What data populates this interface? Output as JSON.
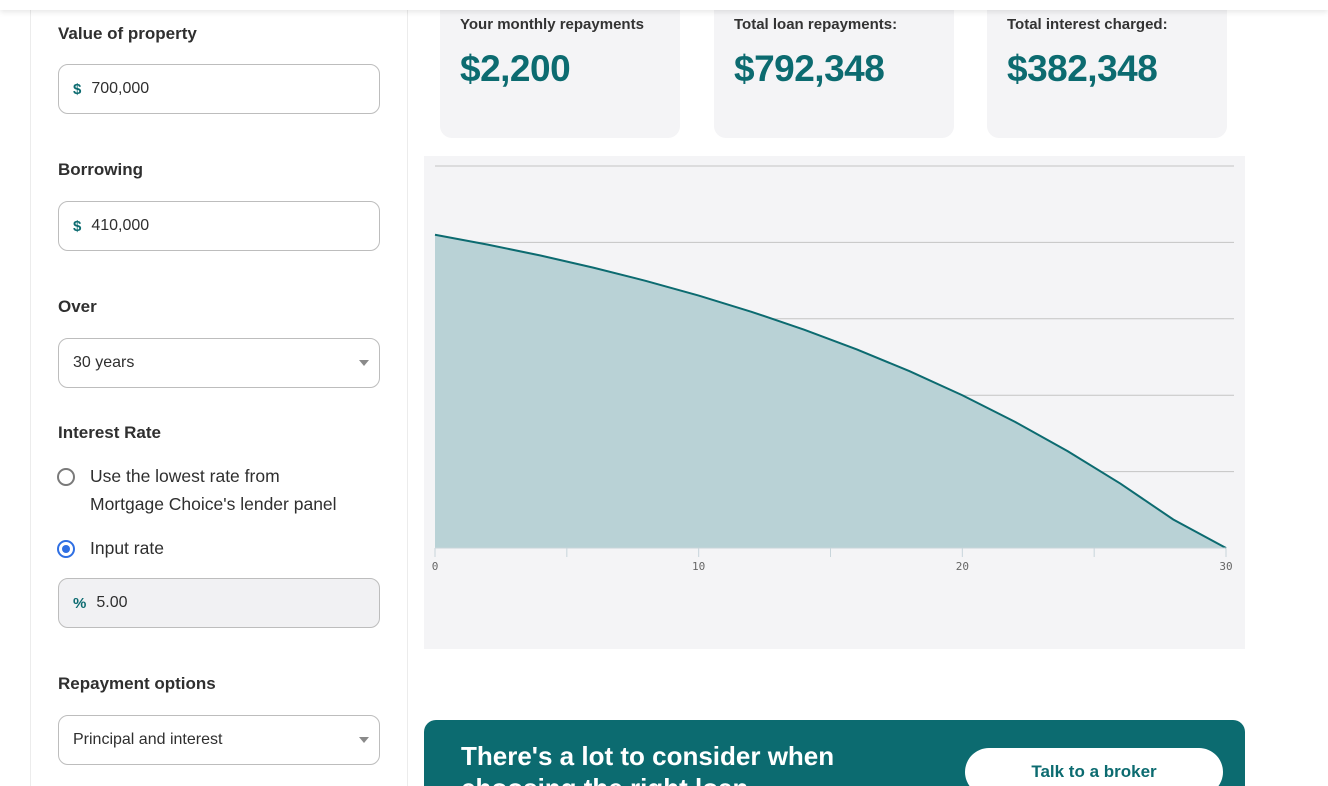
{
  "calculator": {
    "property": {
      "label": "Value of property",
      "prefix": "$",
      "value": "700,000"
    },
    "borrowing": {
      "label": "Borrowing",
      "prefix": "$",
      "value": "410,000"
    },
    "term": {
      "label": "Over",
      "value": "30 years"
    },
    "interest": {
      "label": "Interest Rate",
      "option_lowest_line1": "Use the lowest rate from",
      "option_lowest_line2": "Mortgage Choice's lender panel",
      "option_input": "Input rate",
      "selected": "input",
      "rate_prefix": "%",
      "rate_value": "5.00"
    },
    "repayment": {
      "label": "Repayment options",
      "value": "Principal and interest"
    }
  },
  "results": {
    "monthly": {
      "label": "Your monthly repayments",
      "value": "$2,200"
    },
    "total": {
      "label": "Total loan repayments:",
      "value": "$792,348"
    },
    "interest": {
      "label": "Total interest charged:",
      "value": "$382,348"
    }
  },
  "chart_data": {
    "type": "area",
    "x": [
      0,
      2,
      4,
      6,
      8,
      10,
      12,
      14,
      16,
      18,
      20,
      22,
      24,
      26,
      28,
      30
    ],
    "values": [
      410000,
      397100,
      382800,
      367000,
      349600,
      330400,
      309200,
      285800,
      259900,
      231400,
      199900,
      165100,
      126600,
      84200,
      37300,
      0
    ],
    "x_ticks": [
      "0",
      "10",
      "20",
      "30"
    ],
    "xlim": [
      0,
      30
    ],
    "ylim": [
      0,
      500000
    ],
    "grid": true,
    "colors": {
      "fill": "#b9d2d6",
      "line": "#0c6b70"
    }
  },
  "cta": {
    "text": "There's a lot to consider when choosing the right loan",
    "button": "Talk to a broker"
  },
  "colors": {
    "brand": "#0c6b70",
    "radio_selected": "#2f6fe3",
    "card_bg": "#f4f4f6"
  }
}
